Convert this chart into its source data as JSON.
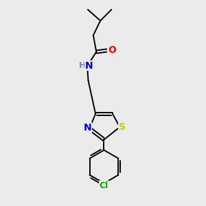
{
  "background_color": "#ebebeb",
  "bond_color": "#000000",
  "figsize": [
    3.0,
    3.0
  ],
  "dpi": 100,
  "atoms": {
    "O": {
      "color": "#ff0000"
    },
    "N": {
      "color": "#0000cc"
    },
    "S": {
      "color": "#cccc00"
    },
    "Cl": {
      "color": "#00aa00"
    },
    "H": {
      "color": "#778899"
    }
  },
  "lw": 1.4,
  "fontsize": 10
}
